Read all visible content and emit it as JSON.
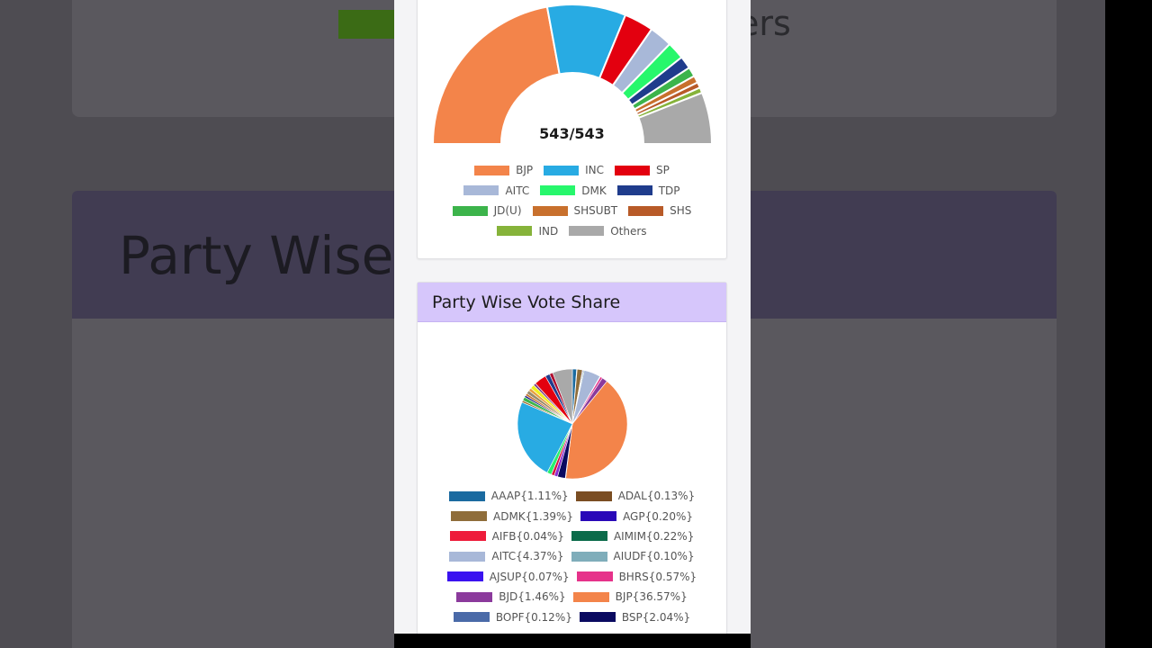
{
  "background_page": {
    "partial_text_others": "ers",
    "partial_title": "Party Wise"
  },
  "seat_chart": {
    "chart_data": {
      "type": "pie",
      "subtype": "half-donut",
      "center_label": "543/543",
      "categories": [
        "BJP",
        "INC",
        "SP",
        "AITC",
        "DMK",
        "TDP",
        "JD(U)",
        "SHSUBT",
        "SHS",
        "IND",
        "Others"
      ],
      "values": [
        240,
        99,
        37,
        29,
        22,
        16,
        12,
        9,
        7,
        7,
        65
      ],
      "colors": [
        "#f3844a",
        "#28abe3",
        "#e3000f",
        "#a8b8d8",
        "#27f76c",
        "#1f3c8c",
        "#3cb44b",
        "#c8702d",
        "#b85a28",
        "#86b33a",
        "#a9a9a9"
      ],
      "legend_position": "bottom"
    }
  },
  "vote_share": {
    "title": "Party Wise Vote Share",
    "chart_data": {
      "type": "pie",
      "legend_position": "bottom",
      "legend_labels": [
        "AAAP{1.11%}",
        "ADAL{0.13%}",
        "ADMK{1.39%}",
        "AGP{0.20%}",
        "AIFB{0.04%}",
        "AIMIM{0.22%}",
        "AITC{4.37%}",
        "AIUDF{0.10%}",
        "AJSUP{0.07%}",
        "BHRS{0.57%}",
        "BJD{1.46%}",
        "BJP{36.57%}",
        "BOPF{0.12%}",
        "BSP{2.04%}"
      ],
      "legend_colors": [
        "#1a6aa0",
        "#7a4d22",
        "#8f6d3a",
        "#2a08b8",
        "#ee1c3b",
        "#0b6b4a",
        "#a8b8d8",
        "#7fadba",
        "#3a12f0",
        "#e6328a",
        "#8b3a9c",
        "#f3844a",
        "#4a6aa8",
        "#0a0a60"
      ],
      "slices": [
        {
          "label": "AAAP",
          "value": 1.11,
          "color": "#1a6aa0"
        },
        {
          "label": "ADAL",
          "value": 0.13,
          "color": "#7a4d22"
        },
        {
          "label": "ADMK",
          "value": 1.39,
          "color": "#8f6d3a"
        },
        {
          "label": "AGP",
          "value": 0.2,
          "color": "#2a08b8"
        },
        {
          "label": "AIFB",
          "value": 0.04,
          "color": "#ee1c3b"
        },
        {
          "label": "AIMIM",
          "value": 0.22,
          "color": "#0b6b4a"
        },
        {
          "label": "AITC",
          "value": 4.37,
          "color": "#a8b8d8"
        },
        {
          "label": "AIUDF",
          "value": 0.1,
          "color": "#7fadba"
        },
        {
          "label": "AJSUP",
          "value": 0.07,
          "color": "#3a12f0"
        },
        {
          "label": "BHRS",
          "value": 0.57,
          "color": "#e6328a"
        },
        {
          "label": "BJD",
          "value": 1.46,
          "color": "#8b3a9c"
        },
        {
          "label": "BJP",
          "value": 36.57,
          "color": "#f3844a"
        },
        {
          "label": "BOPF",
          "value": 0.12,
          "color": "#4a6aa8"
        },
        {
          "label": "BSP",
          "value": 2.04,
          "color": "#0a0a60"
        },
        {
          "label": "",
          "value": 0.9,
          "color": "#8b2bd0"
        },
        {
          "label": "",
          "value": 0.8,
          "color": "#d7143c"
        },
        {
          "label": "",
          "value": 1.2,
          "color": "#28f06e"
        },
        {
          "label": "",
          "value": 21.2,
          "color": "#28abe3"
        },
        {
          "label": "",
          "value": 0.5,
          "color": "#9c6a2a"
        },
        {
          "label": "",
          "value": 1.0,
          "color": "#3cb44b"
        },
        {
          "label": "",
          "value": 0.5,
          "color": "#1a1a80"
        },
        {
          "label": "",
          "value": 0.6,
          "color": "#c8702d"
        },
        {
          "label": "",
          "value": 0.9,
          "color": "#9a8a6a"
        },
        {
          "label": "",
          "value": 0.8,
          "color": "#e8a040"
        },
        {
          "label": "",
          "value": 1.1,
          "color": "#f0f020"
        },
        {
          "label": "",
          "value": 0.6,
          "color": "#7a3a8a"
        },
        {
          "label": "",
          "value": 3.2,
          "color": "#e3000f"
        },
        {
          "label": "",
          "value": 1.2,
          "color": "#1f3c8c"
        },
        {
          "label": "",
          "value": 0.9,
          "color": "#b01030"
        },
        {
          "label": "",
          "value": 5.2,
          "color": "#a9a9a9"
        }
      ]
    }
  }
}
